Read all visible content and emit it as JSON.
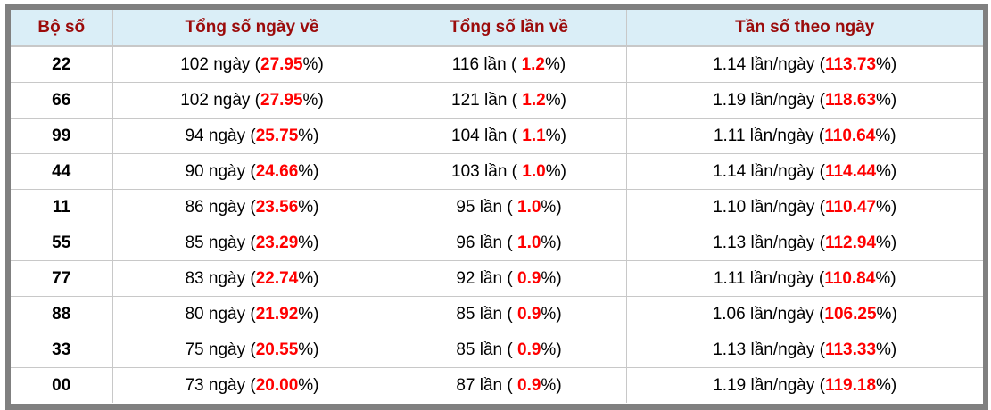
{
  "headers": [
    "Bộ số",
    "Tổng số ngày về",
    "Tổng số lần về",
    "Tần số theo ngày"
  ],
  "rows": [
    {
      "so": "22",
      "ngay": "102",
      "ngay_pct": "27.95",
      "lan": "116",
      "lan_pct": "1.2",
      "freq": "1.14",
      "freq_pct": "113.73"
    },
    {
      "so": "66",
      "ngay": "102",
      "ngay_pct": "27.95",
      "lan": "121",
      "lan_pct": "1.2",
      "freq": "1.19",
      "freq_pct": "118.63"
    },
    {
      "so": "99",
      "ngay": "94",
      "ngay_pct": "25.75",
      "lan": "104",
      "lan_pct": "1.1",
      "freq": "1.11",
      "freq_pct": "110.64"
    },
    {
      "so": "44",
      "ngay": "90",
      "ngay_pct": "24.66",
      "lan": "103",
      "lan_pct": "1.0",
      "freq": "1.14",
      "freq_pct": "114.44"
    },
    {
      "so": "11",
      "ngay": "86",
      "ngay_pct": "23.56",
      "lan": "95",
      "lan_pct": "1.0",
      "freq": "1.10",
      "freq_pct": "110.47"
    },
    {
      "so": "55",
      "ngay": "85",
      "ngay_pct": "23.29",
      "lan": "96",
      "lan_pct": "1.0",
      "freq": "1.13",
      "freq_pct": "112.94"
    },
    {
      "so": "77",
      "ngay": "83",
      "ngay_pct": "22.74",
      "lan": "92",
      "lan_pct": "0.9",
      "freq": "1.11",
      "freq_pct": "110.84"
    },
    {
      "so": "88",
      "ngay": "80",
      "ngay_pct": "21.92",
      "lan": "85",
      "lan_pct": "0.9",
      "freq": "1.06",
      "freq_pct": "106.25"
    },
    {
      "so": "33",
      "ngay": "75",
      "ngay_pct": "20.55",
      "lan": "85",
      "lan_pct": "0.9",
      "freq": "1.13",
      "freq_pct": "113.33"
    },
    {
      "so": "00",
      "ngay": "73",
      "ngay_pct": "20.00",
      "lan": "87",
      "lan_pct": "0.9",
      "freq": "1.19",
      "freq_pct": "119.18"
    }
  ],
  "units": {
    "ngay": "ngày",
    "lan": "lần",
    "freq": "lần/ngày"
  },
  "colors": {
    "header_bg": "#daeef7",
    "header_text": "#9b0b0b",
    "highlight": "#ff0000",
    "frame": "#808080"
  }
}
